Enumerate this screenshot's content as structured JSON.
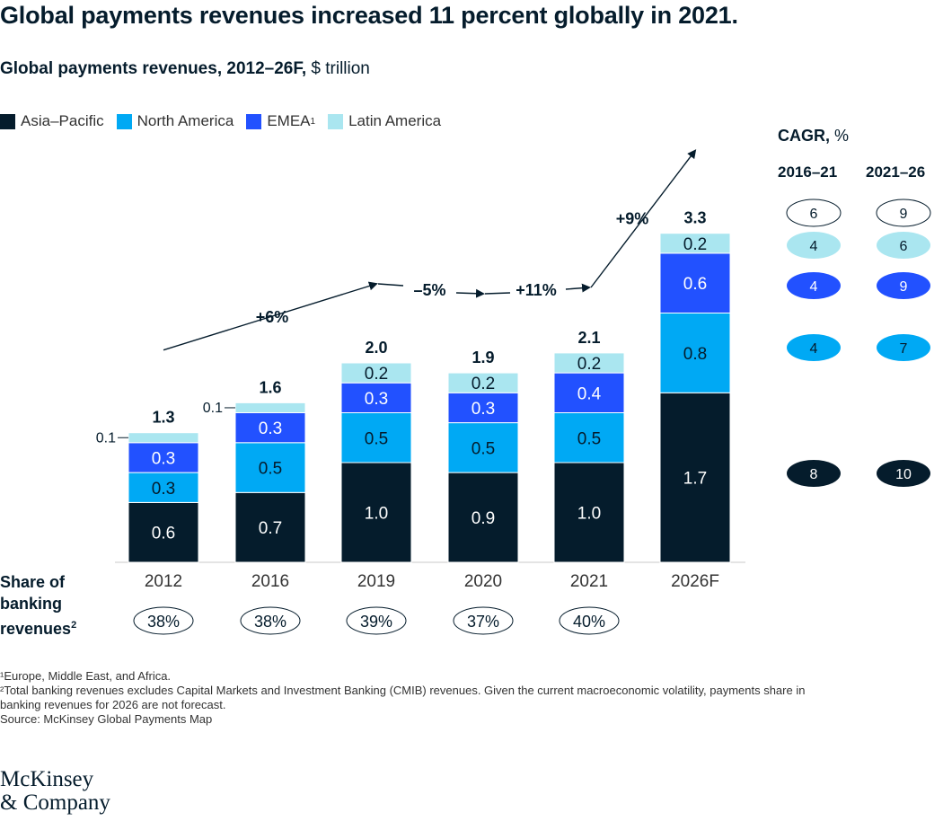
{
  "headline": "Global payments revenues increased 11 percent globally in 2021.",
  "subtitle_bold": "Global payments revenues, 2012–26F,",
  "subtitle_unit": " $ trillion",
  "legend": [
    {
      "label": "Asia–Pacific",
      "sup": "",
      "color": "#051c2c"
    },
    {
      "label": "North America",
      "sup": "",
      "color": "#00a9f4"
    },
    {
      "label": "EMEA",
      "sup": "1",
      "color": "#2251ff"
    },
    {
      "label": "Latin America",
      "sup": "",
      "color": "#aae6f0"
    }
  ],
  "share_label": {
    "lines": [
      "Share of",
      "banking",
      "revenues"
    ],
    "sup": "2"
  },
  "cagr": {
    "title_bold": "CAGR,",
    "title_unit": " %",
    "col1": "2016–21",
    "col2": "2021–26",
    "rows": [
      {
        "series": "Total",
        "v1": "6",
        "v2": "9",
        "fill": "#ffffff",
        "text": "#051c2c",
        "stroke": "#051c2c"
      },
      {
        "series": "Latin America",
        "v1": "4",
        "v2": "6",
        "fill": "#aae6f0",
        "text": "#051c2c",
        "stroke": "none"
      },
      {
        "series": "EMEA",
        "v1": "4",
        "v2": "9",
        "fill": "#2251ff",
        "text": "#ffffff",
        "stroke": "none"
      },
      {
        "series": "North America",
        "v1": "4",
        "v2": "7",
        "fill": "#00a9f4",
        "text": "#051c2c",
        "stroke": "none"
      },
      {
        "series": "Asia–Pacific",
        "v1": "8",
        "v2": "10",
        "fill": "#051c2c",
        "text": "#ffffff",
        "stroke": "none"
      }
    ]
  },
  "chart_data": {
    "type": "bar",
    "stacked": true,
    "categories": [
      "2012",
      "2016",
      "2019",
      "2020",
      "2021",
      "2026F"
    ],
    "series": [
      {
        "name": "Asia–Pacific",
        "values": [
          0.6,
          0.7,
          1.0,
          0.9,
          1.0,
          1.7
        ],
        "labels": [
          "0.6",
          "0.7",
          "1.0",
          "0.9",
          "1.0",
          "1.7"
        ],
        "color": "#051c2c",
        "label_color": "#ffffff"
      },
      {
        "name": "North America",
        "values": [
          0.3,
          0.5,
          0.5,
          0.5,
          0.5,
          0.8
        ],
        "labels": [
          "0.3",
          "0.5",
          "0.5",
          "0.5",
          "0.5",
          "0.8"
        ],
        "color": "#00a9f4",
        "label_color": "#051c2c"
      },
      {
        "name": "EMEA",
        "values": [
          0.3,
          0.3,
          0.3,
          0.3,
          0.4,
          0.6
        ],
        "labels": [
          "0.3",
          "0.3",
          "0.3",
          "0.3",
          "0.4",
          "0.6"
        ],
        "color": "#2251ff",
        "label_color": "#ffffff"
      },
      {
        "name": "Latin America",
        "values": [
          0.1,
          0.1,
          0.2,
          0.2,
          0.2,
          0.2
        ],
        "labels": [
          "0.1",
          "0.1",
          "0.2",
          "0.2",
          "0.2",
          "0.2"
        ],
        "color": "#aae6f0",
        "label_color": "#051c2c"
      }
    ],
    "totals": [
      "1.3",
      "1.6",
      "2.0",
      "1.9",
      "2.1",
      "3.3"
    ],
    "growth_annotations": [
      "+6%",
      "–5%",
      "+11%",
      "+9%"
    ],
    "share_of_banking_revenues": [
      "38%",
      "38%",
      "39%",
      "37%",
      "40%"
    ],
    "ylim": [
      0,
      3.3
    ]
  },
  "footnotes": [
    "¹Europe, Middle East, and Africa.",
    "²Total banking revenues excludes Capital Markets and Investment Banking (CMIB) revenues. Given the current macroeconomic volatility, payments share in\n  banking revenues for 2026 are not forecast.",
    "  Source: McKinsey Global Payments Map"
  ],
  "logo_lines": [
    "McKinsey",
    "& Company"
  ]
}
